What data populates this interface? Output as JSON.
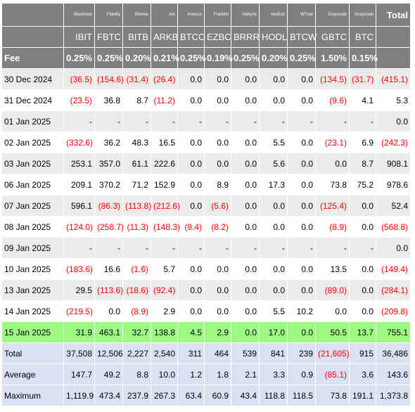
{
  "chart_data": {
    "type": "table",
    "issuers": [
      "Blackrock",
      "Fidelity",
      "Bitwise",
      "Ark",
      "Invesco",
      "Franklin",
      "Valkyrie",
      "VanEck",
      "WTree",
      "Grayscale",
      "Grayscale"
    ],
    "total_header": "Total",
    "tickers": [
      "IBIT",
      "FBTC",
      "BITB",
      "ARKB",
      "BTCO",
      "EZBC",
      "BRRR",
      "HODL",
      "BTCW",
      "GBTC",
      "BTC"
    ],
    "fee_label": "Fee",
    "fees": [
      "0.25%",
      "0.25%",
      "0.20%",
      "0.21%",
      "0.25%",
      "0.19%",
      "0.25%",
      "0.20%",
      "0.25%",
      "1.50%",
      "0.15%"
    ],
    "rows": [
      {
        "label": "30 Dec 2024",
        "values": [
          "(36.5)",
          "(154.6)",
          "(31.4)",
          "(26.4)",
          "0.0",
          "0.0",
          "0.0",
          "0.0",
          "0.0",
          "(134.5)",
          "(31.7)",
          "(415.1)"
        ],
        "highlight": false
      },
      {
        "label": "31 Dec 2024",
        "values": [
          "(23.5)",
          "36.8",
          "8.7",
          "(11.2)",
          "0.0",
          "0.0",
          "0.0",
          "0.0",
          "0.0",
          "(9.6)",
          "4.1",
          "5.3"
        ],
        "highlight": false
      },
      {
        "label": "01 Jan 2025",
        "values": [
          "-",
          "-",
          "-",
          "-",
          "-",
          "-",
          "-",
          "-",
          "-",
          "-",
          "-",
          "0.0"
        ],
        "highlight": false
      },
      {
        "label": "02 Jan 2025",
        "values": [
          "(332.6)",
          "36.2",
          "48.3",
          "16.5",
          "0.0",
          "0.0",
          "0.0",
          "5.5",
          "0.0",
          "(23.1)",
          "6.9",
          "(242.3)"
        ],
        "highlight": false
      },
      {
        "label": "03 Jan 2025",
        "values": [
          "253.1",
          "357.0",
          "61.1",
          "222.6",
          "0.0",
          "0.0",
          "0.0",
          "5.6",
          "0.0",
          "0.0",
          "8.7",
          "908.1"
        ],
        "highlight": false
      },
      {
        "label": "06 Jan 2025",
        "values": [
          "209.1",
          "370.2",
          "71.2",
          "152.9",
          "0.0",
          "8.9",
          "0.0",
          "17.3",
          "0.0",
          "73.8",
          "75.2",
          "978.6"
        ],
        "highlight": false
      },
      {
        "label": "07 Jan 2025",
        "values": [
          "596.1",
          "(86.3)",
          "(113.8)",
          "(212.6)",
          "0.0",
          "(5.6)",
          "0.0",
          "0.0",
          "0.0",
          "(125.4)",
          "0.0",
          "52.4"
        ],
        "highlight": false
      },
      {
        "label": "08 Jan 2025",
        "values": [
          "(124.0)",
          "(258.7)",
          "(11.3)",
          "(148.3)",
          "(9.4)",
          "(8.2)",
          "0.0",
          "0.0",
          "0.0",
          "(8.9)",
          "0.0",
          "(568.8)"
        ],
        "highlight": false
      },
      {
        "label": "09 Jan 2025",
        "values": [
          "-",
          "-",
          "-",
          "-",
          "-",
          "-",
          "-",
          "-",
          "-",
          "-",
          "-",
          "0.0"
        ],
        "highlight": false
      },
      {
        "label": "10 Jan 2025",
        "values": [
          "(183.6)",
          "16.6",
          "(1.6)",
          "5.7",
          "0.0",
          "0.0",
          "0.0",
          "0.0",
          "0.0",
          "13.5",
          "0.0",
          "(149.4)"
        ],
        "highlight": false
      },
      {
        "label": "13 Jan 2025",
        "values": [
          "29.5",
          "(113.6)",
          "(18.6)",
          "(92.4)",
          "0.0",
          "0.0",
          "0.0",
          "0.0",
          "0.0",
          "(89.0)",
          "0.0",
          "(284.1)"
        ],
        "highlight": false
      },
      {
        "label": "14 Jan 2025",
        "values": [
          "(219.5)",
          "0.0",
          "(8.9)",
          "2.9",
          "0.0",
          "0.0",
          "0.0",
          "5.5",
          "10.2",
          "0.0",
          "0.0",
          "(209.8)"
        ],
        "highlight": false
      },
      {
        "label": "15 Jan 2025",
        "values": [
          "31.9",
          "463.1",
          "32.7",
          "138.8",
          "4.5",
          "2.9",
          "0.0",
          "17.0",
          "0.0",
          "50.5",
          "13.7",
          "755.1"
        ],
        "highlight": true
      }
    ],
    "summary": [
      {
        "label": "Total",
        "values": [
          "37,508",
          "12,506",
          "2,227",
          "2,540",
          "311",
          "464",
          "539",
          "841",
          "239",
          "(21,605)",
          "915",
          "36,486"
        ]
      },
      {
        "label": "Average",
        "values": [
          "147.7",
          "49.2",
          "8.8",
          "10.0",
          "1.2",
          "1.8",
          "2.1",
          "3.3",
          "0.9",
          "(85.1)",
          "3.6",
          "143.6"
        ]
      },
      {
        "label": "Maximum",
        "values": [
          "1,119.9",
          "473.4",
          "237.9",
          "267.3",
          "63.4",
          "60.9",
          "43.4",
          "118.8",
          "118.5",
          "73.8",
          "191.1",
          "1,373.8"
        ]
      }
    ]
  },
  "colors": {
    "header_bg": "#808080",
    "header_text": "#ffffff",
    "odd_row_bg": "#ebebeb",
    "even_row_bg": "#ffffff",
    "highlight_row_bg": "#9dfb84",
    "summary_row_bg": "#d9e1f2",
    "negative_text": "#ff0000"
  }
}
